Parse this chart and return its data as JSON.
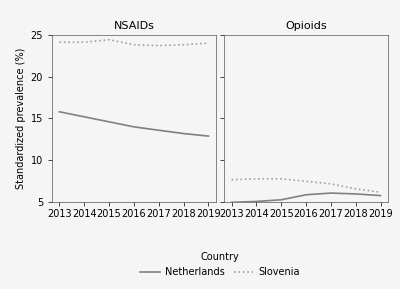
{
  "years": [
    2013,
    2014,
    2015,
    2016,
    2017,
    2018,
    2019
  ],
  "nsaids_netherlands": [
    15.8,
    15.2,
    14.6,
    14.0,
    13.6,
    13.2,
    12.9
  ],
  "nsaids_slovenia": [
    24.1,
    24.1,
    24.4,
    23.8,
    23.7,
    23.8,
    24.0
  ],
  "opioids_netherlands": [
    5.0,
    5.1,
    5.3,
    5.9,
    6.1,
    6.0,
    5.8
  ],
  "opioids_slovenia": [
    7.7,
    7.8,
    7.8,
    7.5,
    7.2,
    6.6,
    6.2
  ],
  "ylim": [
    5,
    25
  ],
  "yticks": [
    5,
    10,
    15,
    20,
    25
  ],
  "ylabel": "Standardized prevalence (%)",
  "panel_labels": [
    "NSAIDs",
    "Opioids"
  ],
  "legend_country": "Country",
  "legend_netherlands": "Netherlands",
  "legend_slovenia": "Slovenia",
  "line_color_netherlands": "#808080",
  "line_color_slovenia": "#a0a0a0",
  "background_color": "#f5f5f5",
  "font_size_axis": 7,
  "font_size_panel": 8,
  "font_size_legend": 7
}
